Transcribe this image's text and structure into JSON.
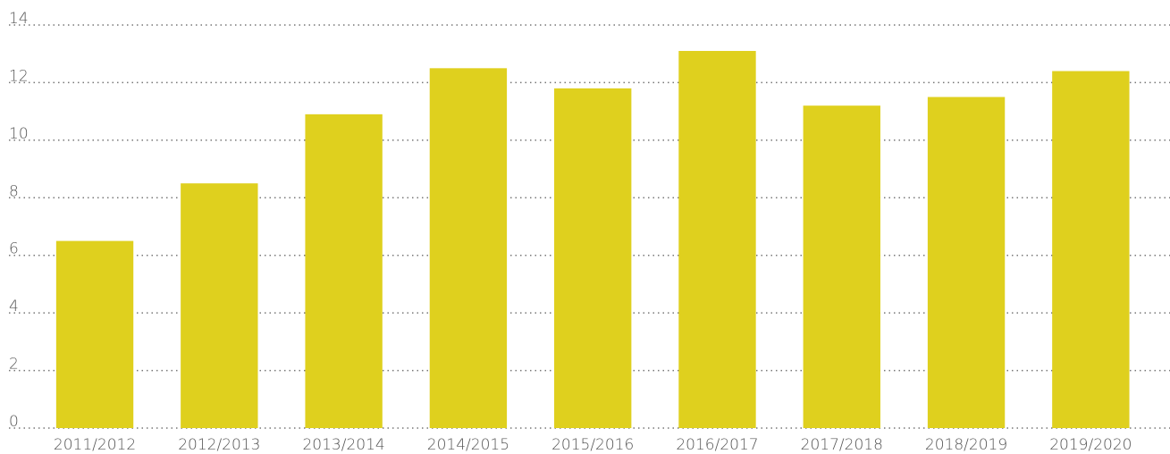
{
  "chart_data": {
    "type": "bar",
    "categories": [
      "2011/2012",
      "2012/2013",
      "2013/2014",
      "2014/2015",
      "2015/2016",
      "2016/2017",
      "2017/2018",
      "2018/2019",
      "2019/2020"
    ],
    "values": [
      6.5,
      8.5,
      10.9,
      12.5,
      11.8,
      13.1,
      11.2,
      11.5,
      12.4
    ],
    "color": "#dfd01e",
    "ylim": [
      0,
      14
    ],
    "yticks": [
      0,
      2,
      4,
      6,
      8,
      10,
      12,
      14
    ],
    "grid": true
  }
}
